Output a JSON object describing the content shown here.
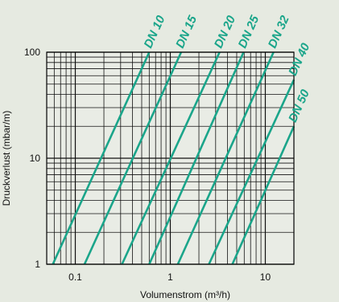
{
  "chart_data": {
    "type": "line",
    "xscale": "log",
    "yscale": "log",
    "xlim": [
      0.05,
      20
    ],
    "ylim": [
      1,
      100
    ],
    "xlabel": "Volumenstrom (m³/h)",
    "ylabel": "Druckverlust (mbar/m)",
    "xticks": [
      {
        "value": 0.1,
        "label": "0.1"
      },
      {
        "value": 1,
        "label": "1"
      },
      {
        "value": 10,
        "label": "10"
      }
    ],
    "yticks": [
      {
        "value": 1,
        "label": "1"
      },
      {
        "value": 10,
        "label": "10"
      },
      {
        "value": 100,
        "label": "100"
      }
    ],
    "grid": true,
    "line_color": "#1aa58a",
    "series": [
      {
        "name": "DN 10",
        "x": [
          0.058,
          0.6
        ],
        "y": [
          1,
          100
        ]
      },
      {
        "name": "DN 15",
        "x": [
          0.125,
          1.3
        ],
        "y": [
          1,
          100
        ]
      },
      {
        "name": "DN 20",
        "x": [
          0.31,
          3.3
        ],
        "y": [
          1,
          100
        ]
      },
      {
        "name": "DN 25",
        "x": [
          0.6,
          5.9
        ],
        "y": [
          1,
          100
        ]
      },
      {
        "name": "DN 32",
        "x": [
          1.2,
          12.2
        ],
        "y": [
          1,
          100
        ]
      },
      {
        "name": "DN 40",
        "x": [
          2.55,
          20
        ],
        "y": [
          1,
          55
        ]
      },
      {
        "name": "DN 50",
        "x": [
          4.5,
          20
        ],
        "y": [
          1,
          20
        ]
      }
    ]
  }
}
